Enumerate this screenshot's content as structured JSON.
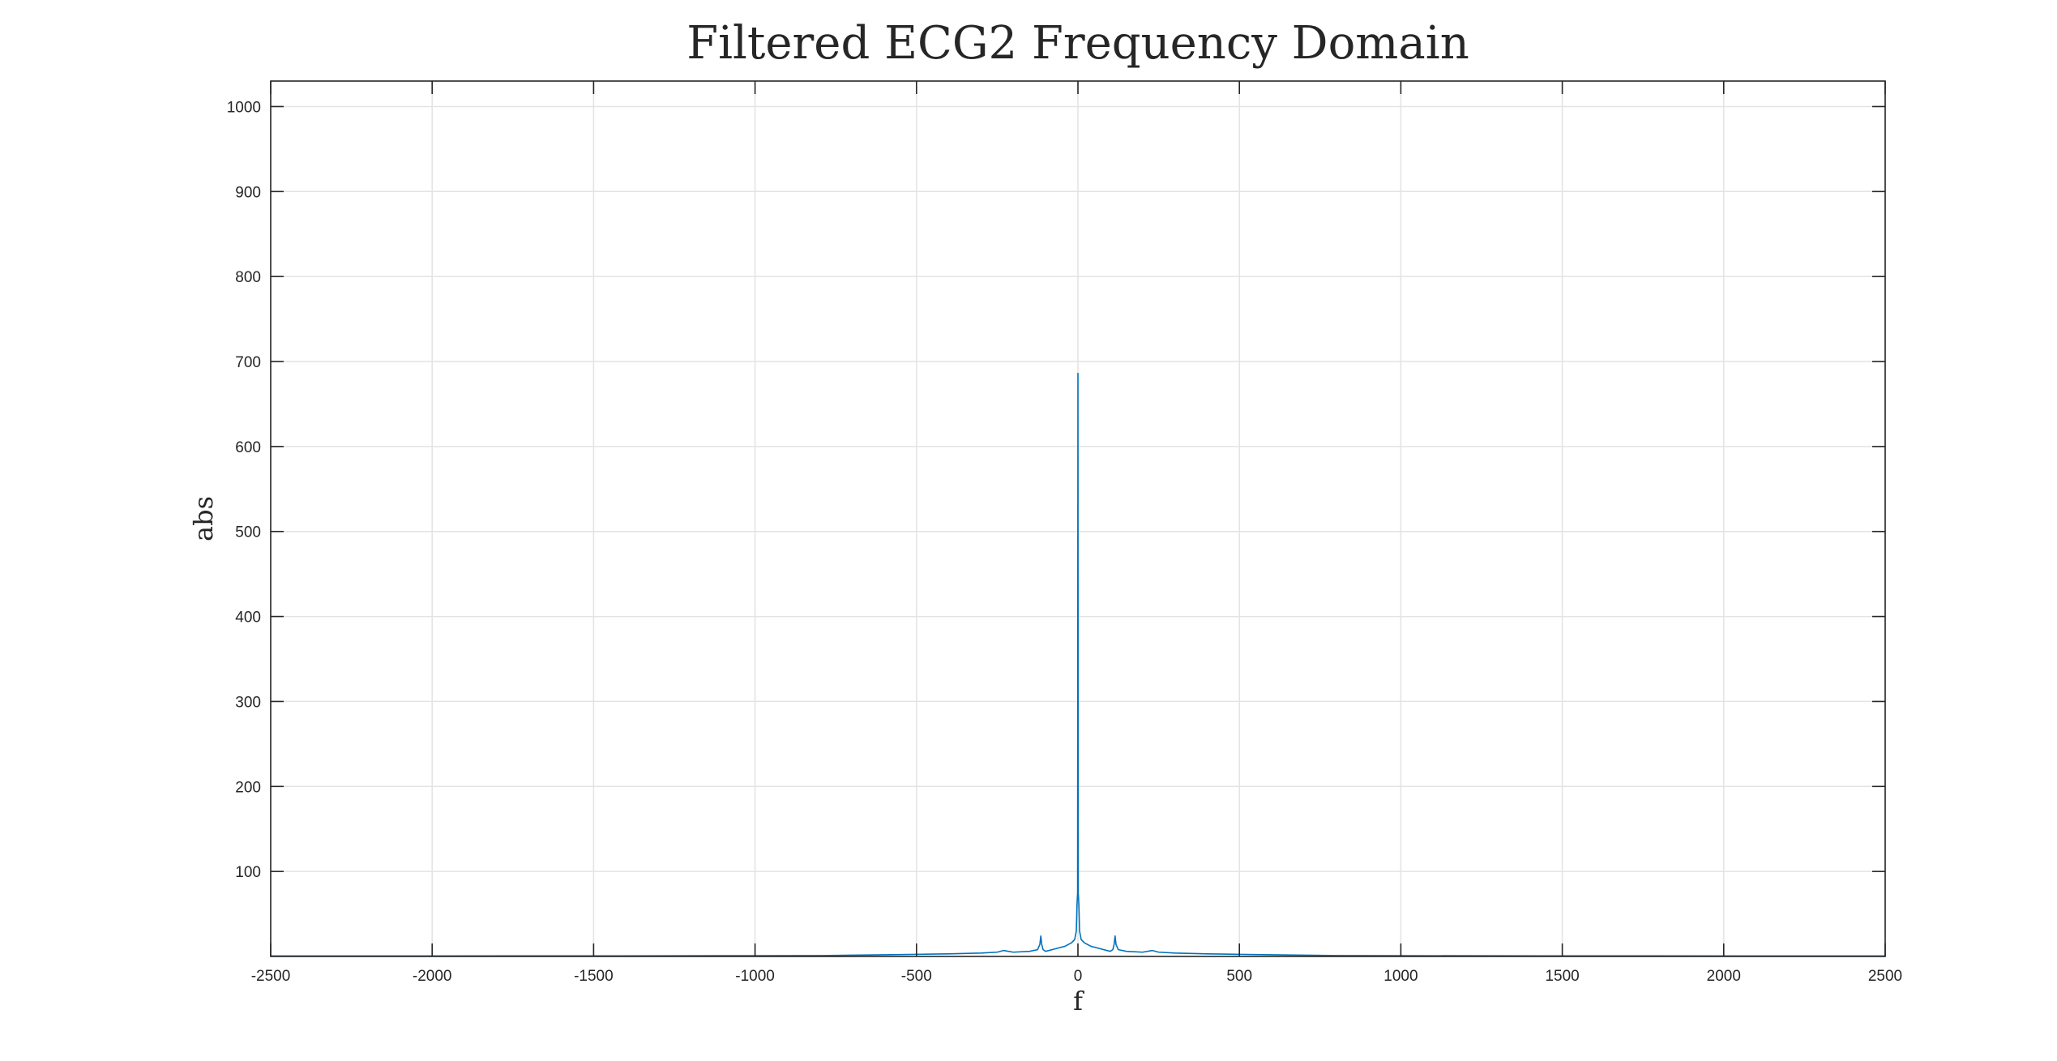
{
  "chart_data": {
    "type": "line",
    "title": "Filtered ECG2 Frequency Domain",
    "xlabel": "f",
    "ylabel": "abs",
    "xlim": [
      -2500,
      2500
    ],
    "ylim": [
      0,
      1030
    ],
    "xticks": [
      -2500,
      -2000,
      -1500,
      -1000,
      -500,
      0,
      500,
      1000,
      1500,
      2000,
      2500
    ],
    "xtick_labels": [
      "-2500",
      "-2000",
      "-1500",
      "-1000",
      "-500",
      "0",
      "500",
      "1000",
      "1500",
      "2000",
      "2500"
    ],
    "yticks": [
      100,
      200,
      300,
      400,
      500,
      600,
      700,
      800,
      900,
      1000
    ],
    "ytick_labels": [
      "100",
      "200",
      "300",
      "400",
      "500",
      "600",
      "700",
      "800",
      "900",
      "1000"
    ],
    "grid": true,
    "box": true,
    "series": [
      {
        "color": "#0072bd",
        "x": [
          -2500,
          -1500,
          -1000,
          -800,
          -700,
          -600,
          -500,
          -400,
          -300,
          -250,
          -230,
          -200,
          -150,
          -125,
          -118,
          -115,
          -112,
          -108,
          -100,
          -80,
          -60,
          -40,
          -20,
          -10,
          -5,
          -3,
          -1,
          0,
          1,
          3,
          5,
          10,
          20,
          40,
          60,
          80,
          100,
          108,
          112,
          115,
          118,
          125,
          150,
          200,
          230,
          250,
          300,
          400,
          500,
          600,
          700,
          800,
          1000,
          1500,
          2500
        ],
        "y": [
          0.5,
          0.7,
          0.9,
          1,
          1.5,
          2,
          2.5,
          3,
          4,
          5,
          7,
          5,
          6,
          8,
          14,
          24,
          14,
          8,
          6,
          8,
          10,
          12,
          16,
          20,
          30,
          60,
          75,
          686,
          75,
          60,
          30,
          20,
          16,
          12,
          10,
          8,
          6,
          8,
          14,
          24,
          14,
          8,
          6,
          5,
          7,
          5,
          4,
          3,
          2.5,
          2,
          1.5,
          1,
          0.9,
          0.7,
          0.5
        ]
      }
    ]
  }
}
